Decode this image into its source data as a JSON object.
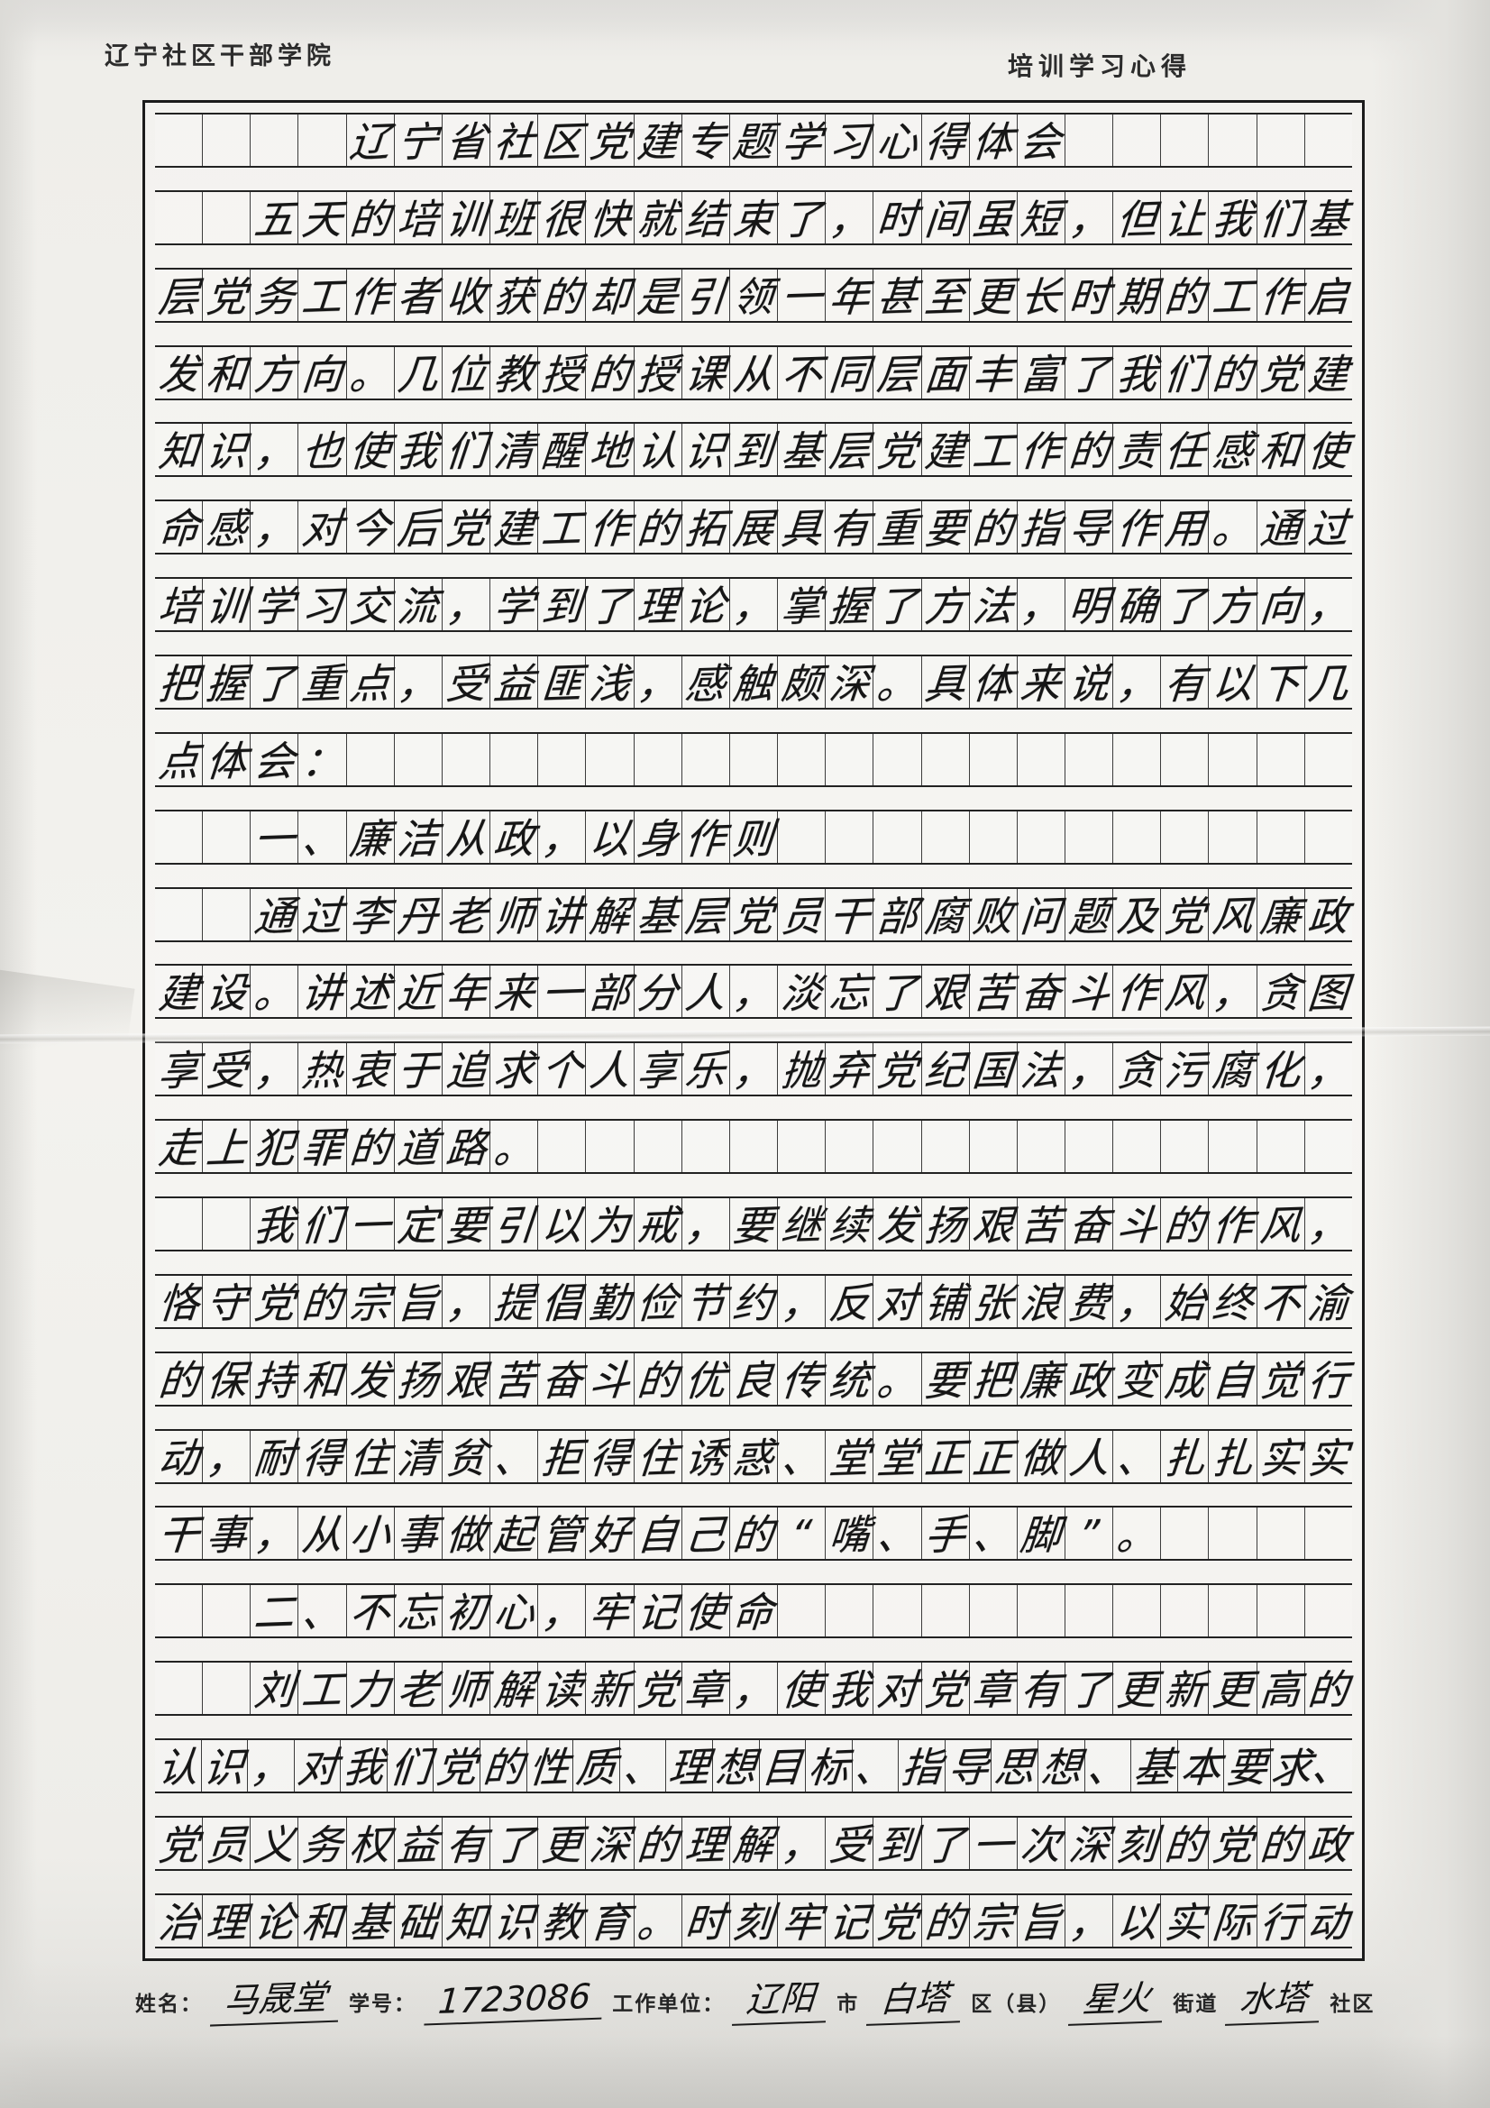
{
  "page": {
    "header_left": "辽宁社区干部学院",
    "header_right": "培训学习心得"
  },
  "manuscript": {
    "columns": 25,
    "lines": [
      {
        "indent": 4,
        "role": "title",
        "text": "辽宁省社区党建专题学习心得体会"
      },
      {
        "indent": 2,
        "role": "body",
        "text": "五天的培训班很快就结束了，时间虽短，但让我们基"
      },
      {
        "indent": 0,
        "role": "body",
        "text": "层党务工作者收获的却是引领一年甚至更长时期的工作启"
      },
      {
        "indent": 0,
        "role": "body",
        "text": "发和方向。几位教授的授课从不同层面丰富了我们的党建"
      },
      {
        "indent": 0,
        "role": "body",
        "text": "知识，也使我们清醒地认识到基层党建工作的责任感和使"
      },
      {
        "indent": 0,
        "role": "body",
        "text": "命感，对今后党建工作的拓展具有重要的指导作用。通过"
      },
      {
        "indent": 0,
        "role": "body",
        "text": "培训学习交流，学到了理论，掌握了方法，明确了方向，"
      },
      {
        "indent": 0,
        "role": "body",
        "text": "把握了重点，受益匪浅，感触颇深。具体来说，有以下几"
      },
      {
        "indent": 0,
        "role": "body",
        "text": "点体会："
      },
      {
        "indent": 2,
        "role": "heading",
        "text": "一、廉洁从政，以身作则"
      },
      {
        "indent": 2,
        "role": "body",
        "text": "通过李丹老师讲解基层党员干部腐败问题及党风廉政"
      },
      {
        "indent": 0,
        "role": "body",
        "text": "建设。讲述近年来一部分人，淡忘了艰苦奋斗作风，贪图"
      },
      {
        "indent": 0,
        "role": "body",
        "text": "享受，热衷于追求个人享乐，抛弃党纪国法，贪污腐化，"
      },
      {
        "indent": 0,
        "role": "body",
        "text": "走上犯罪的道路。"
      },
      {
        "indent": 2,
        "role": "body",
        "text": "我们一定要引以为戒，要继续发扬艰苦奋斗的作风，"
      },
      {
        "indent": 0,
        "role": "body",
        "text": "恪守党的宗旨，提倡勤俭节约，反对铺张浪费，始终不渝"
      },
      {
        "indent": 0,
        "role": "body",
        "text": "的保持和发扬艰苦奋斗的优良传统。要把廉政变成自觉行"
      },
      {
        "indent": 0,
        "role": "body",
        "text": "动，耐得住清贫、拒得住诱惑、堂堂正正做人、扎扎实实"
      },
      {
        "indent": 0,
        "role": "body",
        "text": "干事，从小事做起管好自己的“嘴、手、脚”。"
      },
      {
        "indent": 2,
        "role": "heading",
        "text": "二、不忘初心，牢记使命"
      },
      {
        "indent": 2,
        "role": "body",
        "text": "刘工力老师解读新党章，使我对党章有了更新更高的"
      },
      {
        "indent": 0,
        "role": "body",
        "text": "认识，对我们党的性质、理想目标、指导思想、基本要求、"
      },
      {
        "indent": 0,
        "role": "body",
        "text": "党员义务权益有了更深的理解，受到了一次深刻的党的政"
      },
      {
        "indent": 0,
        "role": "body",
        "text": "治理论和基础知识教育。时刻牢记党的宗旨，以实际行动"
      }
    ]
  },
  "footer": {
    "segments": [
      {
        "kind": "label",
        "text": "姓名："
      },
      {
        "kind": "fill",
        "text": "马晟堂"
      },
      {
        "kind": "label",
        "text": "学号："
      },
      {
        "kind": "fill",
        "text": "1723086"
      },
      {
        "kind": "label",
        "text": "工作单位："
      },
      {
        "kind": "fill",
        "text": "辽阳"
      },
      {
        "kind": "label",
        "text": "市"
      },
      {
        "kind": "fill",
        "text": "白塔"
      },
      {
        "kind": "label",
        "text": "区（县）"
      },
      {
        "kind": "fill",
        "text": "星火"
      },
      {
        "kind": "label",
        "text": "街道"
      },
      {
        "kind": "fill",
        "text": "水塔"
      },
      {
        "kind": "label",
        "text": "社区"
      }
    ]
  },
  "colors": {
    "ink": "#161616",
    "grid_line": "#222222",
    "paper": "#f3f2ee"
  }
}
